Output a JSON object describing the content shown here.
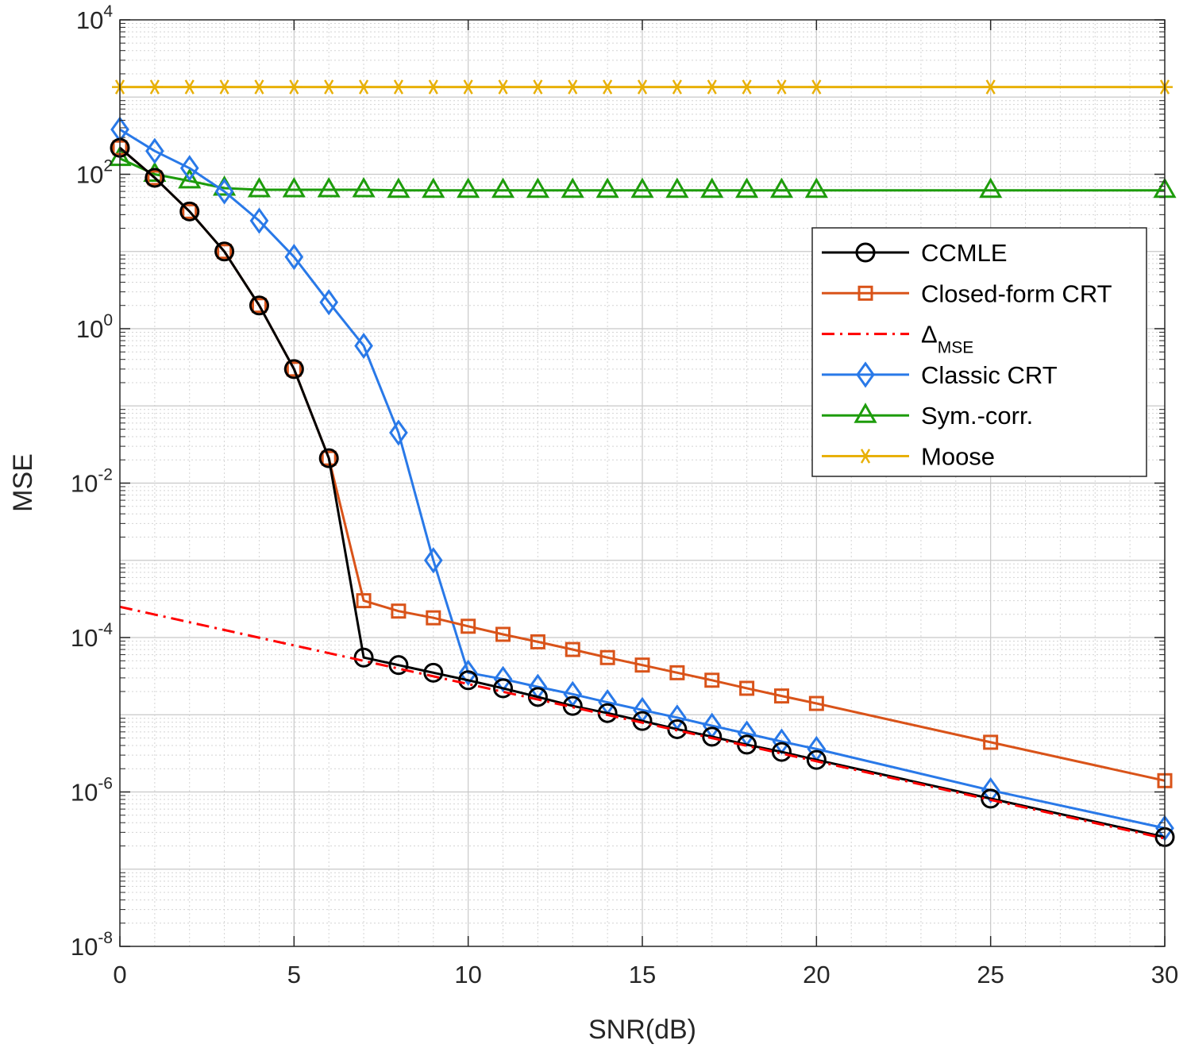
{
  "chart_data": {
    "type": "line",
    "title": "",
    "xlabel": "SNR(dB)",
    "ylabel": "MSE",
    "xscale": "linear",
    "yscale": "log",
    "xlim": [
      0,
      30
    ],
    "ylim": [
      1e-08,
      10000
    ],
    "grid": true,
    "minor_grid": true,
    "xticks": [
      0,
      5,
      10,
      15,
      20,
      25,
      30
    ],
    "xtick_labels": [
      "0",
      "5",
      "10",
      "15",
      "20",
      "25",
      "30"
    ],
    "yticks": [
      {
        "value": 1e-08,
        "base": "10",
        "exp": "-8"
      },
      {
        "value": 1e-06,
        "base": "10",
        "exp": "-6"
      },
      {
        "value": 0.0001,
        "base": "10",
        "exp": "-4"
      },
      {
        "value": 0.01,
        "base": "10",
        "exp": "-2"
      },
      {
        "value": 1,
        "base": "10",
        "exp": "0"
      },
      {
        "value": 100,
        "base": "10",
        "exp": "2"
      },
      {
        "value": 10000,
        "base": "10",
        "exp": "4"
      }
    ],
    "legend_position": "right-middle",
    "series": [
      {
        "name": "CCMLE",
        "legend_label": "CCMLE",
        "color": "#000000",
        "marker": "circle",
        "dash": "solid",
        "x": [
          0,
          1,
          2,
          3,
          4,
          5,
          6,
          7,
          8,
          9,
          10,
          11,
          12,
          13,
          14,
          15,
          16,
          17,
          18,
          19,
          20,
          25,
          30
        ],
        "y": [
          220,
          90,
          33,
          10,
          2.0,
          0.3,
          0.021,
          5.5e-05,
          4.4e-05,
          3.5e-05,
          2.8e-05,
          2.2e-05,
          1.7e-05,
          1.3e-05,
          1.05e-05,
          8.3e-06,
          6.5e-06,
          5.2e-06,
          4.1e-06,
          3.3e-06,
          2.6e-06,
          8.2e-07,
          2.6e-07
        ]
      },
      {
        "name": "Closed-form CRT",
        "legend_label": "Closed-form CRT",
        "color": "#d95319",
        "marker": "square",
        "dash": "solid",
        "x": [
          0,
          1,
          2,
          3,
          4,
          5,
          6,
          7,
          8,
          9,
          10,
          11,
          12,
          13,
          14,
          15,
          16,
          17,
          18,
          19,
          20,
          25,
          30
        ],
        "y": [
          220,
          90,
          33,
          10,
          2.0,
          0.3,
          0.021,
          0.0003,
          0.00022,
          0.00018,
          0.00014,
          0.00011,
          8.8e-05,
          7e-05,
          5.5e-05,
          4.4e-05,
          3.5e-05,
          2.8e-05,
          2.2e-05,
          1.75e-05,
          1.4e-05,
          4.4e-06,
          1.4e-06
        ]
      },
      {
        "name": "Delta MSE",
        "legend_label": "Δ",
        "legend_sub": "MSE",
        "color": "#ff0000",
        "marker": "none",
        "dash": "dashdot",
        "x": [
          0,
          30
        ],
        "y": [
          0.00025,
          2.5e-07
        ]
      },
      {
        "name": "Classic CRT",
        "legend_label": "Classic CRT",
        "color": "#2979e8",
        "marker": "diamond",
        "dash": "solid",
        "x": [
          0,
          1,
          2,
          3,
          4,
          5,
          6,
          7,
          8,
          9,
          10,
          11,
          12,
          13,
          14,
          15,
          16,
          17,
          18,
          19,
          20,
          25,
          30
        ],
        "y": [
          380,
          200,
          120,
          60,
          25,
          8.5,
          2.2,
          0.6,
          0.045,
          0.001,
          3.5e-05,
          2.9e-05,
          2.3e-05,
          1.85e-05,
          1.45e-05,
          1.15e-05,
          9.2e-06,
          7.2e-06,
          5.7e-06,
          4.5e-06,
          3.6e-06,
          1.05e-06,
          3.4e-07
        ]
      },
      {
        "name": "Sym.-corr.",
        "legend_label": "Sym.-corr.",
        "color": "#1d9c0b",
        "marker": "triangle",
        "dash": "solid",
        "x": [
          0,
          1,
          2,
          3,
          4,
          5,
          6,
          7,
          8,
          9,
          10,
          11,
          12,
          13,
          14,
          15,
          16,
          17,
          18,
          19,
          20,
          25,
          30
        ],
        "y": [
          160,
          100,
          82,
          66,
          63,
          63,
          63,
          63,
          62,
          62,
          62,
          62,
          62,
          62,
          62,
          62,
          62,
          62,
          62,
          62,
          62,
          62,
          62
        ]
      },
      {
        "name": "Moose",
        "legend_label": "Moose",
        "color": "#e8b007",
        "marker": "asterisk",
        "dash": "solid",
        "x": [
          0,
          1,
          2,
          3,
          4,
          5,
          6,
          7,
          8,
          9,
          10,
          11,
          12,
          13,
          14,
          15,
          16,
          17,
          18,
          19,
          20,
          25,
          30
        ],
        "y": [
          1350,
          1350,
          1350,
          1350,
          1350,
          1350,
          1350,
          1350,
          1350,
          1350,
          1350,
          1350,
          1350,
          1350,
          1350,
          1350,
          1350,
          1350,
          1350,
          1350,
          1350,
          1350,
          1350
        ]
      }
    ]
  }
}
